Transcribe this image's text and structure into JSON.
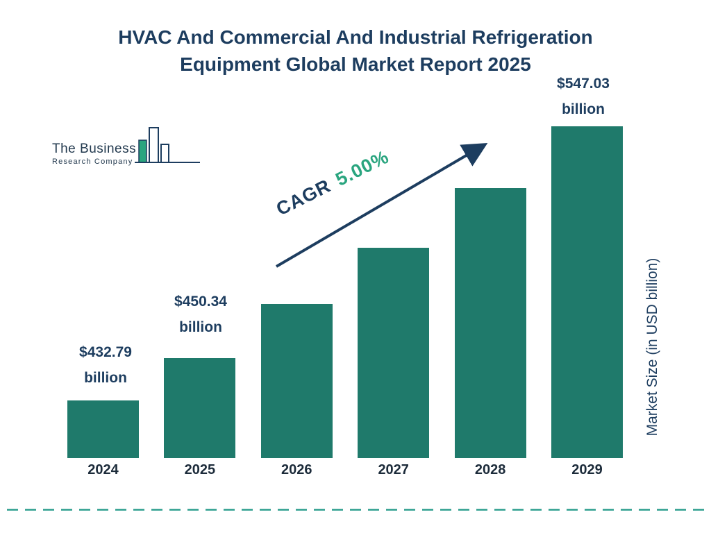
{
  "title": {
    "line1": "HVAC And Commercial And Industrial Refrigeration",
    "line2": "Equipment Global Market Report 2025"
  },
  "logo": {
    "line1": "The Business",
    "line2": "Research Company"
  },
  "cagr": {
    "label": "CAGR",
    "value": "5.00%"
  },
  "value_labels": [
    {
      "bar_index": 0,
      "amount": "$432.79",
      "unit": "billion"
    },
    {
      "bar_index": 1,
      "amount": "$450.34",
      "unit": "billion"
    },
    {
      "bar_index": 5,
      "amount": "$547.03",
      "unit": "billion"
    }
  ],
  "colors": {
    "title_navy": "#1d3d5f",
    "bar_teal": "#1f7a6b",
    "cagr_green": "#2aa57f",
    "dashed_line_teal": "#2b9d8d"
  },
  "chart_data": {
    "type": "bar",
    "title": "HVAC And Commercial And Industrial Refrigeration Equipment Global Market Report 2025",
    "categories": [
      "2024",
      "2025",
      "2026",
      "2027",
      "2028",
      "2029"
    ],
    "values": [
      432.79,
      450.34,
      472.86,
      496.5,
      521.33,
      547.03
    ],
    "value_unit": "USD billion",
    "labeled_points": [
      {
        "category": "2024",
        "label": "$432.79 billion"
      },
      {
        "category": "2025",
        "label": "$450.34 billion"
      },
      {
        "category": "2029",
        "label": "$547.03 billion"
      }
    ],
    "cagr": "5.00%",
    "xlabel": "",
    "ylabel": "Market Size (in USD billion)",
    "grid": false,
    "legend": false,
    "bar_color": "#1f7a6b"
  }
}
